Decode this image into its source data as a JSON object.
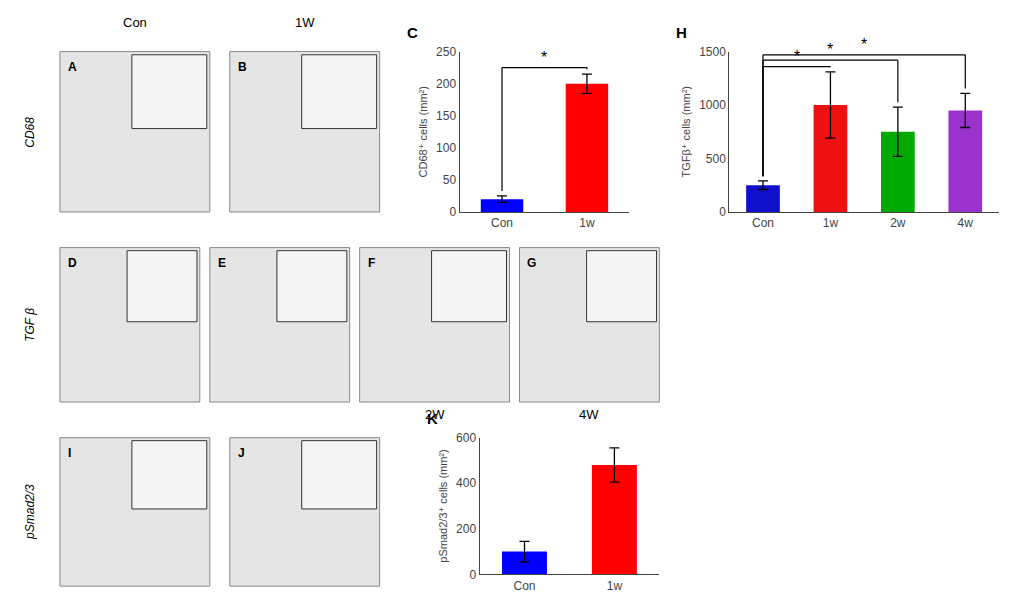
{
  "chart_data": [
    {
      "type": "bar",
      "title": "C",
      "categories": [
        "Con",
        "1w"
      ],
      "values": [
        20,
        200
      ],
      "errors": [
        5,
        15
      ],
      "colors": [
        "#0000FF",
        "#FF0000"
      ],
      "ylabel": "CD68⁺ cells (mm²)",
      "ylim": [
        0,
        250
      ],
      "yticks": [
        0,
        50,
        100,
        150,
        200,
        250
      ],
      "grid": false,
      "significance": [
        {
          "from": "Con",
          "to": "1w",
          "y": 225,
          "label": "*"
        }
      ]
    },
    {
      "type": "bar",
      "title": "H",
      "categories": [
        "Con",
        "1w",
        "2w",
        "4w"
      ],
      "values": [
        250,
        1000,
        750,
        950
      ],
      "errors": [
        40,
        310,
        230,
        160
      ],
      "colors": [
        "#1111CC",
        "#EE1111",
        "#00AA00",
        "#9933CC"
      ],
      "ylabel": "TGFβ⁺ cells (mm²)",
      "ylim": [
        0,
        1500
      ],
      "yticks": [
        0,
        500,
        1000,
        1500
      ],
      "grid": false,
      "significance": [
        {
          "from": "Con",
          "to": "1w",
          "y": 1360,
          "label": "*"
        },
        {
          "from": "Con",
          "to": "2w",
          "y": 1420,
          "label": "*"
        },
        {
          "from": "Con",
          "to": "4w",
          "y": 1470,
          "label": "*"
        }
      ]
    },
    {
      "type": "bar",
      "title": "K",
      "categories": [
        "Con",
        "1w"
      ],
      "values": [
        100,
        480
      ],
      "errors": [
        45,
        75
      ],
      "colors": [
        "#0000FF",
        "#FF0000"
      ],
      "ylabel": "pSmad2/3⁺ cells (mm²)",
      "ylim": [
        0,
        600
      ],
      "yticks": [
        0,
        200,
        400,
        600
      ],
      "grid": false
    }
  ],
  "annotations": [
    "A",
    "B",
    "D",
    "E",
    "F",
    "G",
    "I",
    "J",
    "CD68",
    "TGF β",
    "pSmad2/3",
    "Con",
    "1W",
    "2W",
    "4W"
  ]
}
